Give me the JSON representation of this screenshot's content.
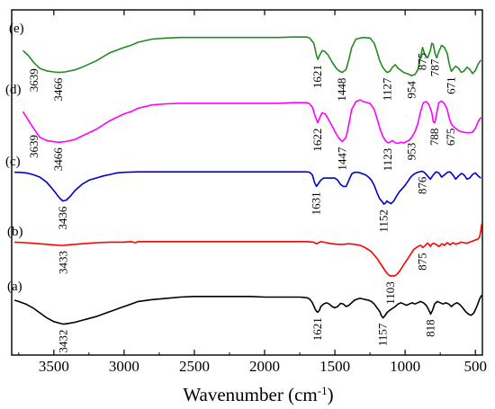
{
  "chart_data": {
    "type": "line",
    "xlabel_main": "Wavenumber (cm",
    "xlabel_sup": "-1",
    "xlabel_close": ")",
    "xlim": [
      3800,
      450
    ],
    "x_reversed": true,
    "ylabel": "",
    "y_ticks_shown": false,
    "legend": "none",
    "grid": false,
    "xticks": [
      3500,
      3000,
      2500,
      2000,
      1500,
      1000,
      500
    ],
    "xtick_labels": [
      "3500",
      "3000",
      "2500",
      "2000",
      "1500",
      "1000",
      "500"
    ],
    "series": [
      {
        "name": "(e)",
        "color": "#228b22",
        "offset": 4,
        "x": [
          3720,
          3680,
          3639,
          3600,
          3550,
          3500,
          3466,
          3420,
          3350,
          3300,
          3200,
          3100,
          3000,
          2950,
          2900,
          2800,
          2700,
          2600,
          2500,
          2400,
          2300,
          2200,
          2100,
          2000,
          1900,
          1800,
          1750,
          1700,
          1680,
          1650,
          1630,
          1621,
          1610,
          1590,
          1570,
          1550,
          1520,
          1490,
          1470,
          1448,
          1420,
          1400,
          1380,
          1350,
          1300,
          1250,
          1220,
          1200,
          1180,
          1160,
          1140,
          1127,
          1110,
          1090,
          1070,
          1050,
          1030,
          1010,
          990,
          970,
          954,
          930,
          910,
          890,
          875,
          860,
          840,
          820,
          810,
          800,
          787,
          775,
          760,
          740,
          720,
          700,
          690,
          680,
          671,
          660,
          640,
          620,
          600,
          580,
          560,
          540,
          520,
          500,
          480,
          460
        ],
        "y": [
          0.72,
          0.62,
          0.48,
          0.38,
          0.33,
          0.31,
          0.3,
          0.31,
          0.35,
          0.4,
          0.52,
          0.68,
          0.78,
          0.82,
          0.88,
          0.94,
          0.96,
          0.97,
          0.97,
          0.97,
          0.97,
          0.97,
          0.97,
          0.97,
          0.97,
          0.98,
          0.98,
          0.98,
          0.96,
          0.86,
          0.62,
          0.55,
          0.62,
          0.72,
          0.7,
          0.64,
          0.5,
          0.38,
          0.33,
          0.3,
          0.36,
          0.55,
          0.78,
          0.94,
          0.97,
          0.96,
          0.86,
          0.7,
          0.52,
          0.4,
          0.33,
          0.3,
          0.32,
          0.4,
          0.45,
          0.38,
          0.34,
          0.3,
          0.28,
          0.26,
          0.24,
          0.26,
          0.35,
          0.6,
          0.78,
          0.64,
          0.58,
          0.72,
          0.86,
          0.84,
          0.66,
          0.58,
          0.7,
          0.82,
          0.78,
          0.66,
          0.52,
          0.4,
          0.32,
          0.36,
          0.42,
          0.38,
          0.3,
          0.33,
          0.4,
          0.36,
          0.28,
          0.34,
          0.46,
          0.54
        ]
      },
      {
        "name": "(d)",
        "color": "#ff00ff",
        "offset": 3,
        "x": [
          3720,
          3680,
          3639,
          3600,
          3550,
          3500,
          3466,
          3420,
          3350,
          3300,
          3200,
          3100,
          3000,
          2950,
          2900,
          2800,
          2700,
          2600,
          2500,
          2400,
          2300,
          2200,
          2100,
          2000,
          1900,
          1800,
          1750,
          1700,
          1680,
          1660,
          1640,
          1622,
          1610,
          1590,
          1570,
          1550,
          1520,
          1490,
          1470,
          1447,
          1420,
          1400,
          1380,
          1350,
          1320,
          1300,
          1250,
          1220,
          1200,
          1180,
          1160,
          1140,
          1123,
          1110,
          1090,
          1070,
          1050,
          1030,
          1010,
          990,
          970,
          953,
          930,
          910,
          890,
          870,
          850,
          830,
          810,
          800,
          788,
          775,
          760,
          740,
          720,
          700,
          690,
          675,
          660,
          640,
          620,
          600,
          580,
          560,
          540,
          520,
          500,
          480,
          460
        ],
        "y": [
          0.82,
          0.66,
          0.5,
          0.36,
          0.3,
          0.28,
          0.27,
          0.28,
          0.32,
          0.38,
          0.5,
          0.66,
          0.78,
          0.82,
          0.88,
          0.94,
          0.96,
          0.97,
          0.97,
          0.97,
          0.97,
          0.97,
          0.97,
          0.97,
          0.97,
          0.98,
          0.98,
          0.98,
          0.96,
          0.9,
          0.74,
          0.62,
          0.7,
          0.8,
          0.78,
          0.7,
          0.56,
          0.42,
          0.34,
          0.28,
          0.36,
          0.6,
          0.86,
          1.0,
          1.03,
          1.0,
          0.97,
          0.86,
          0.7,
          0.52,
          0.38,
          0.3,
          0.26,
          0.27,
          0.3,
          0.26,
          0.25,
          0.27,
          0.26,
          0.28,
          0.31,
          0.36,
          0.46,
          0.6,
          0.82,
          0.98,
          1.0,
          0.94,
          0.8,
          0.64,
          0.62,
          0.8,
          0.98,
          1.01,
          0.96,
          0.86,
          0.74,
          0.62,
          0.56,
          0.52,
          0.48,
          0.46,
          0.45,
          0.44,
          0.44,
          0.45,
          0.52,
          0.64,
          0.72
        ]
      },
      {
        "name": "(c)",
        "color": "#0000cd",
        "offset": 2,
        "x": [
          3780,
          3750,
          3700,
          3650,
          3600,
          3550,
          3500,
          3460,
          3436,
          3410,
          3380,
          3350,
          3300,
          3250,
          3200,
          3150,
          3100,
          3050,
          3000,
          2900,
          2800,
          2700,
          2600,
          2500,
          2400,
          2300,
          2200,
          2100,
          2000,
          1900,
          1800,
          1750,
          1700,
          1680,
          1660,
          1645,
          1631,
          1615,
          1600,
          1580,
          1560,
          1540,
          1520,
          1500,
          1480,
          1460,
          1440,
          1420,
          1400,
          1380,
          1360,
          1340,
          1320,
          1300,
          1280,
          1260,
          1240,
          1220,
          1200,
          1180,
          1160,
          1152,
          1140,
          1130,
          1120,
          1100,
          1080,
          1060,
          1040,
          1020,
          1000,
          980,
          960,
          940,
          920,
          900,
          880,
          876,
          860,
          840,
          820,
          800,
          780,
          760,
          740,
          720,
          700,
          680,
          660,
          640,
          620,
          600,
          580,
          560,
          540,
          520,
          500,
          480,
          460
        ],
        "y": [
          0.97,
          0.97,
          0.96,
          0.93,
          0.88,
          0.78,
          0.62,
          0.48,
          0.42,
          0.44,
          0.52,
          0.62,
          0.74,
          0.82,
          0.86,
          0.9,
          0.93,
          0.96,
          0.97,
          0.98,
          0.98,
          0.98,
          0.98,
          0.98,
          0.98,
          0.98,
          0.98,
          0.98,
          0.98,
          0.98,
          0.98,
          0.98,
          0.98,
          0.97,
          0.92,
          0.78,
          0.7,
          0.76,
          0.82,
          0.86,
          0.86,
          0.86,
          0.86,
          0.86,
          0.82,
          0.74,
          0.7,
          0.7,
          0.82,
          0.94,
          0.97,
          0.97,
          0.96,
          0.94,
          0.92,
          0.88,
          0.82,
          0.72,
          0.58,
          0.46,
          0.4,
          0.36,
          0.38,
          0.42,
          0.4,
          0.37,
          0.42,
          0.52,
          0.6,
          0.66,
          0.72,
          0.8,
          0.88,
          0.93,
          0.96,
          0.98,
          0.99,
          0.99,
          0.96,
          0.9,
          0.84,
          0.92,
          0.98,
          0.96,
          0.88,
          0.92,
          0.97,
          0.98,
          0.92,
          0.84,
          0.9,
          0.95,
          0.92,
          0.84,
          0.86,
          0.93,
          0.96,
          0.9,
          0.86
        ]
      },
      {
        "name": "(b)",
        "color": "#ff0000",
        "offset": 1,
        "x": [
          3780,
          3700,
          3600,
          3500,
          3450,
          3433,
          3400,
          3350,
          3300,
          3200,
          3100,
          3000,
          2950,
          2920,
          2900,
          2800,
          2700,
          2600,
          2500,
          2400,
          2300,
          2200,
          2100,
          2000,
          1900,
          1800,
          1700,
          1650,
          1630,
          1600,
          1560,
          1520,
          1480,
          1440,
          1400,
          1360,
          1320,
          1300,
          1280,
          1260,
          1240,
          1220,
          1200,
          1180,
          1160,
          1140,
          1120,
          1103,
          1090,
          1080,
          1060,
          1040,
          1020,
          1000,
          980,
          960,
          940,
          920,
          900,
          890,
          880,
          875,
          860,
          850,
          840,
          830,
          820,
          810,
          800,
          790,
          780,
          770,
          760,
          750,
          740,
          730,
          720,
          710,
          700,
          690,
          680,
          670,
          660,
          650,
          640,
          620,
          600,
          580,
          560,
          540,
          520,
          500,
          480,
          470,
          460,
          455
        ],
        "y": [
          0.96,
          0.95,
          0.93,
          0.91,
          0.9,
          0.9,
          0.91,
          0.92,
          0.93,
          0.95,
          0.96,
          0.96,
          0.97,
          0.95,
          0.97,
          0.97,
          0.97,
          0.97,
          0.97,
          0.97,
          0.97,
          0.97,
          0.97,
          0.97,
          0.97,
          0.97,
          0.97,
          0.96,
          0.93,
          0.97,
          0.95,
          0.93,
          0.92,
          0.92,
          0.93,
          0.92,
          0.9,
          0.88,
          0.85,
          0.82,
          0.78,
          0.72,
          0.66,
          0.58,
          0.5,
          0.42,
          0.36,
          0.33,
          0.34,
          0.33,
          0.36,
          0.42,
          0.5,
          0.58,
          0.66,
          0.74,
          0.82,
          0.86,
          0.89,
          0.9,
          0.88,
          0.86,
          0.89,
          0.92,
          0.94,
          0.92,
          0.88,
          0.92,
          0.94,
          0.93,
          0.92,
          0.9,
          0.88,
          0.9,
          0.93,
          0.92,
          0.9,
          0.93,
          0.95,
          0.93,
          0.91,
          0.93,
          0.95,
          0.94,
          0.92,
          0.94,
          0.96,
          0.95,
          0.94,
          0.96,
          0.98,
          1.0,
          1.02,
          1.06,
          1.18,
          1.3
        ]
      },
      {
        "name": "(a)",
        "color": "#000000",
        "offset": 0,
        "x": [
          3780,
          3750,
          3700,
          3650,
          3600,
          3550,
          3500,
          3450,
          3432,
          3400,
          3350,
          3300,
          3250,
          3200,
          3150,
          3100,
          3050,
          3000,
          2950,
          2900,
          2800,
          2700,
          2600,
          2500,
          2400,
          2300,
          2200,
          2100,
          2000,
          1900,
          1800,
          1750,
          1700,
          1680,
          1660,
          1640,
          1630,
          1621,
          1610,
          1600,
          1580,
          1560,
          1540,
          1520,
          1500,
          1480,
          1460,
          1440,
          1420,
          1400,
          1380,
          1360,
          1340,
          1320,
          1300,
          1280,
          1260,
          1240,
          1220,
          1200,
          1180,
          1170,
          1157,
          1145,
          1130,
          1110,
          1090,
          1070,
          1050,
          1030,
          1010,
          990,
          970,
          950,
          930,
          910,
          890,
          870,
          850,
          830,
          818,
          805,
          790,
          770,
          750,
          730,
          710,
          690,
          670,
          650,
          630,
          610,
          590,
          570,
          550,
          530,
          510,
          490,
          470,
          455
        ],
        "y": [
          0.9,
          0.88,
          0.84,
          0.78,
          0.7,
          0.62,
          0.56,
          0.53,
          0.52,
          0.53,
          0.55,
          0.58,
          0.61,
          0.64,
          0.68,
          0.72,
          0.76,
          0.8,
          0.84,
          0.88,
          0.91,
          0.93,
          0.95,
          0.96,
          0.96,
          0.96,
          0.96,
          0.96,
          0.95,
          0.95,
          0.95,
          0.95,
          0.94,
          0.92,
          0.86,
          0.76,
          0.72,
          0.71,
          0.74,
          0.8,
          0.84,
          0.86,
          0.84,
          0.8,
          0.78,
          0.8,
          0.85,
          0.84,
          0.8,
          0.82,
          0.86,
          0.9,
          0.92,
          0.93,
          0.92,
          0.91,
          0.9,
          0.88,
          0.84,
          0.78,
          0.72,
          0.66,
          0.62,
          0.65,
          0.7,
          0.74,
          0.77,
          0.8,
          0.84,
          0.86,
          0.84,
          0.82,
          0.84,
          0.86,
          0.84,
          0.86,
          0.88,
          0.86,
          0.82,
          0.74,
          0.68,
          0.74,
          0.84,
          0.88,
          0.86,
          0.84,
          0.86,
          0.84,
          0.8,
          0.84,
          0.86,
          0.83,
          0.78,
          0.72,
          0.68,
          0.66,
          0.7,
          0.8,
          0.92,
          0.98
        ]
      }
    ],
    "annotations": [
      {
        "series": "(e)",
        "labels": [
          {
            "text": "3639",
            "x": 3639
          },
          {
            "text": "3466",
            "x": 3466
          },
          {
            "text": "1621",
            "x": 1621
          },
          {
            "text": "1448",
            "x": 1448
          },
          {
            "text": "1127",
            "x": 1127
          },
          {
            "text": "954",
            "x": 954
          },
          {
            "text": "875",
            "x": 875
          },
          {
            "text": "787",
            "x": 787
          },
          {
            "text": "671",
            "x": 671
          }
        ]
      },
      {
        "series": "(d)",
        "labels": [
          {
            "text": "3639",
            "x": 3639
          },
          {
            "text": "3466",
            "x": 3466
          },
          {
            "text": "1622",
            "x": 1622
          },
          {
            "text": "1447",
            "x": 1447
          },
          {
            "text": "1123",
            "x": 1123
          },
          {
            "text": "953",
            "x": 953
          },
          {
            "text": "788",
            "x": 788
          },
          {
            "text": "675",
            "x": 675
          }
        ]
      },
      {
        "series": "(c)",
        "labels": [
          {
            "text": "3436",
            "x": 3436
          },
          {
            "text": "1631",
            "x": 1631
          },
          {
            "text": "1152",
            "x": 1152
          },
          {
            "text": "876",
            "x": 876
          }
        ]
      },
      {
        "series": "(b)",
        "labels": [
          {
            "text": "3433",
            "x": 3433
          },
          {
            "text": "1103",
            "x": 1103
          },
          {
            "text": "875",
            "x": 875
          }
        ]
      },
      {
        "series": "(a)",
        "labels": [
          {
            "text": "3432",
            "x": 3432
          },
          {
            "text": "1621",
            "x": 1621
          },
          {
            "text": "1157",
            "x": 1157
          },
          {
            "text": "818",
            "x": 818
          }
        ]
      }
    ]
  }
}
